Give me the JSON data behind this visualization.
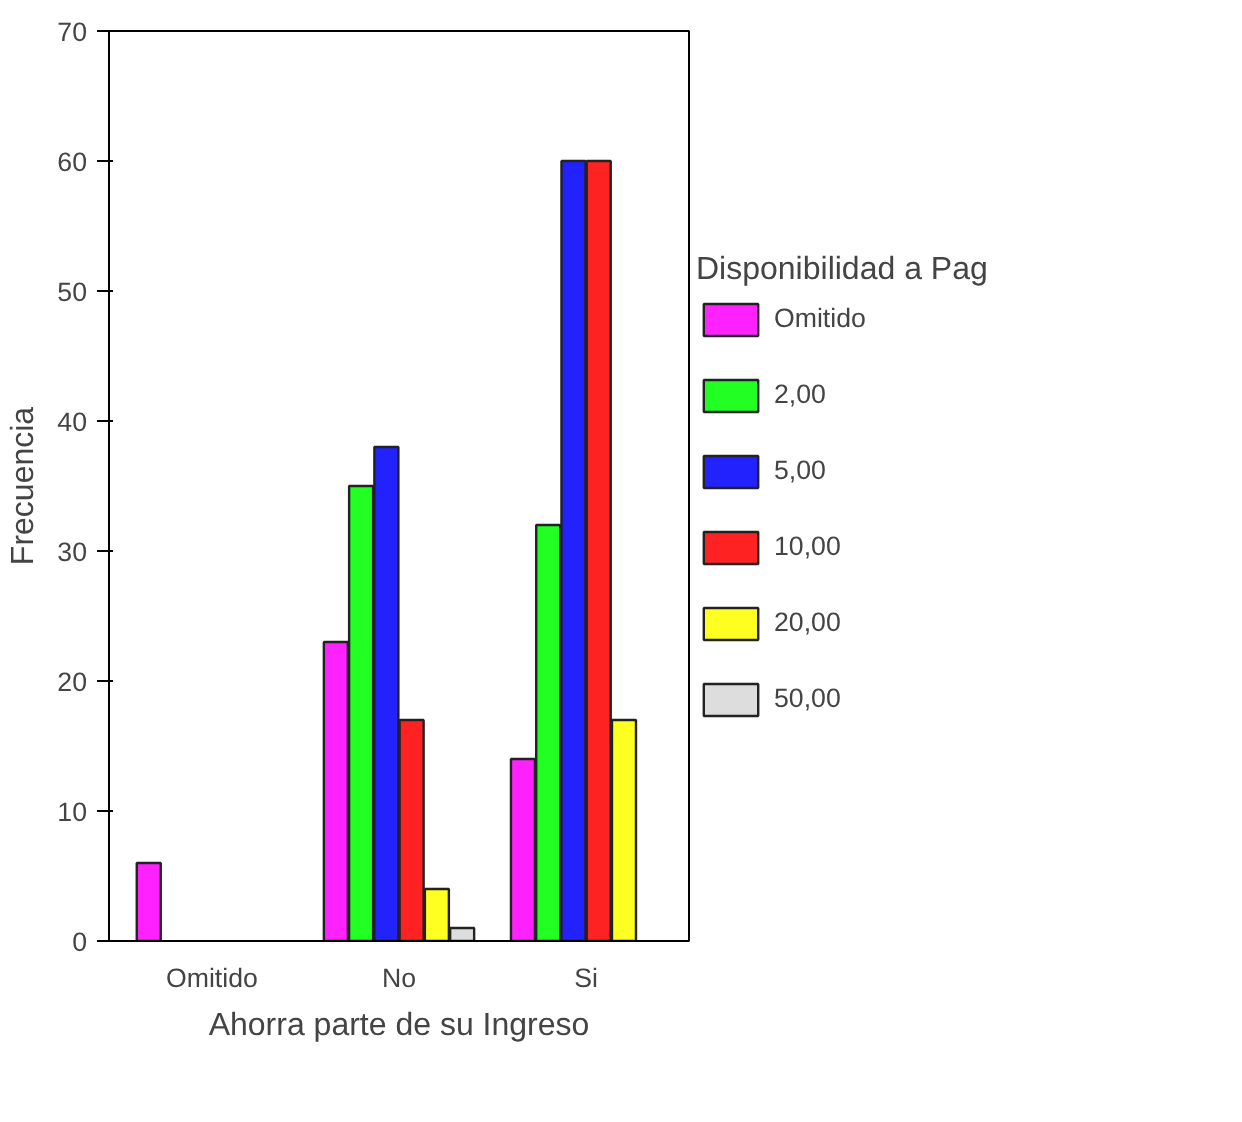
{
  "chart_data": {
    "type": "bar",
    "xlabel": "Ahorra parte de su Ingreso",
    "ylabel": "Frecuencia",
    "legend_title": "Disponibilidad a Pag",
    "categories": [
      "Omitido",
      "No",
      "Si"
    ],
    "series": [
      {
        "name": "Omitido",
        "color": "#ff22ff",
        "values": [
          6,
          23,
          14
        ]
      },
      {
        "name": "2,00",
        "color": "#22ff22",
        "values": [
          null,
          35,
          32
        ]
      },
      {
        "name": "5,00",
        "color": "#2222ff",
        "values": [
          null,
          38,
          60
        ]
      },
      {
        "name": "10,00",
        "color": "#ff2222",
        "values": [
          null,
          17,
          60
        ]
      },
      {
        "name": "20,00",
        "color": "#ffff22",
        "values": [
          null,
          4,
          17
        ]
      },
      {
        "name": "50,00",
        "color": "#dddddd",
        "values": [
          null,
          1,
          null
        ]
      }
    ],
    "ylim": [
      0,
      70
    ],
    "yticks": [
      0,
      10,
      20,
      30,
      40,
      50,
      60,
      70
    ],
    "grid": false,
    "legend": "right"
  }
}
